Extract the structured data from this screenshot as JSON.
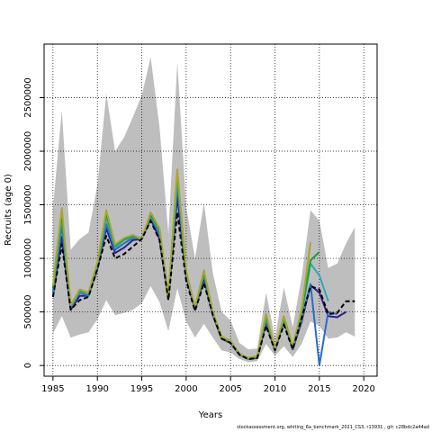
{
  "footer": "stockassessment.org, whiting_6a_benchmark_2021_CS3, r13931 , git: c28bdc2a44ad",
  "chart_data": {
    "type": "line",
    "title": "",
    "xlabel": "Years",
    "ylabel": "Recruits (age 0)",
    "xlim": [
      1984,
      2021.5
    ],
    "ylim": [
      -100000,
      3000000
    ],
    "xticks": [
      1985,
      1990,
      1995,
      2000,
      2005,
      2010,
      2015,
      2020
    ],
    "yticks": [
      0,
      500000,
      1000000,
      1500000,
      2000000,
      2500000
    ],
    "ytick_labels": [
      "0",
      "500000",
      "1000000",
      "1500000",
      "2000000",
      "2500000"
    ],
    "grid": true,
    "band": {
      "fill": "#bebebe",
      "x": [
        1985,
        1986,
        1987,
        1988,
        1989,
        1990,
        1991,
        1992,
        1993,
        1994,
        1995,
        1996,
        1997,
        1998,
        1999,
        2000,
        2001,
        2002,
        2003,
        2004,
        2005,
        2006,
        2007,
        2008,
        2009,
        2010,
        2011,
        2012,
        2013,
        2014,
        2015,
        2016,
        2017,
        2018,
        2019
      ],
      "upper": [
        1480000,
        2380000,
        1080000,
        1180000,
        1240000,
        1680000,
        2540000,
        2000000,
        2130000,
        2320000,
        2520000,
        2880000,
        2220000,
        1230000,
        2830000,
        1480000,
        1000000,
        1520000,
        860000,
        500000,
        420000,
        210000,
        150000,
        160000,
        680000,
        260000,
        730000,
        360000,
        820000,
        1450000,
        1350000,
        910000,
        950000,
        1140000,
        1290000
      ],
      "lower": [
        300000,
        460000,
        260000,
        290000,
        310000,
        430000,
        610000,
        470000,
        490000,
        520000,
        580000,
        740000,
        590000,
        320000,
        720000,
        410000,
        260000,
        390000,
        260000,
        140000,
        120000,
        60000,
        30000,
        40000,
        200000,
        90000,
        180000,
        80000,
        200000,
        410000,
        370000,
        250000,
        260000,
        310000,
        270000
      ]
    },
    "series": [
      {
        "color": "#2f1f8a",
        "dash": "",
        "x": [
          1985,
          1986,
          1987,
          1988,
          1989,
          1990,
          1991,
          1992,
          1993,
          1994,
          1995,
          1996,
          1997,
          1998,
          1999,
          2000,
          2001,
          2002,
          2003,
          2004,
          2005,
          2006,
          2007,
          2008,
          2009,
          2010,
          2011,
          2012,
          2013,
          2014,
          2015,
          2016,
          2017,
          2018
        ],
        "y": [
          650000,
          1200000,
          520000,
          650000,
          650000,
          900000,
          1280000,
          1050000,
          1100000,
          1170000,
          1180000,
          1370000,
          1180000,
          620000,
          1580000,
          830000,
          520000,
          810000,
          470000,
          250000,
          210000,
          100000,
          60000,
          70000,
          400000,
          140000,
          420000,
          150000,
          410000,
          750000,
          680000,
          460000,
          450000,
          500000
        ]
      },
      {
        "color": "#2a6dc8",
        "dash": "",
        "x": [
          1985,
          1986,
          1987,
          1988,
          1989,
          1990,
          1991,
          1992,
          1993,
          1994,
          1995,
          1996,
          1997,
          1998,
          1999,
          2000,
          2001,
          2002,
          2003,
          2004,
          2005,
          2006,
          2007,
          2008,
          2009,
          2010,
          2011,
          2012,
          2013,
          2014,
          2015,
          2016,
          2017
        ],
        "y": [
          680000,
          1300000,
          540000,
          680000,
          650000,
          920000,
          1320000,
          1080000,
          1140000,
          1190000,
          1190000,
          1390000,
          1220000,
          630000,
          1680000,
          850000,
          530000,
          840000,
          480000,
          260000,
          220000,
          100000,
          60000,
          80000,
          420000,
          150000,
          430000,
          160000,
          430000,
          760000,
          700,
          500000,
          480000
        ]
      },
      {
        "color": "#2fa8b8",
        "dash": "",
        "x": [
          1985,
          1986,
          1987,
          1988,
          1989,
          1990,
          1991,
          1992,
          1993,
          1994,
          1995,
          1996,
          1997,
          1998,
          1999,
          2000,
          2001,
          2002,
          2003,
          2004,
          2005,
          2006,
          2007,
          2008,
          2009,
          2010,
          2011,
          2012,
          2013,
          2014,
          2015,
          2016
        ],
        "y": [
          700000,
          1380000,
          550000,
          690000,
          670000,
          940000,
          1380000,
          1100000,
          1170000,
          1200000,
          1180000,
          1400000,
          1250000,
          640000,
          1750000,
          860000,
          540000,
          860000,
          490000,
          260000,
          220000,
          110000,
          60000,
          80000,
          450000,
          150000,
          440000,
          170000,
          470000,
          950000,
          840000,
          600000
        ]
      },
      {
        "color": "#1e9a3c",
        "dash": "",
        "x": [
          1985,
          1986,
          1987,
          1988,
          1989,
          1990,
          1991,
          1992,
          1993,
          1994,
          1995,
          1996,
          1997,
          1998,
          1999,
          2000,
          2001,
          2002,
          2003,
          2004,
          2005,
          2006,
          2007,
          2008,
          2009,
          2010,
          2011,
          2012,
          2013,
          2014,
          2015
        ],
        "y": [
          720000,
          1420000,
          560000,
          700000,
          680000,
          950000,
          1420000,
          1120000,
          1180000,
          1210000,
          1180000,
          1410000,
          1270000,
          650000,
          1800000,
          870000,
          540000,
          870000,
          490000,
          260000,
          220000,
          110000,
          60000,
          80000,
          460000,
          150000,
          450000,
          170000,
          500000,
          980000,
          1060000
        ]
      },
      {
        "color": "#a8a82a",
        "dash": "",
        "x": [
          1985,
          1986,
          1987,
          1988,
          1989,
          1990,
          1991,
          1992,
          1993,
          1994,
          1995,
          1996,
          1997,
          1998,
          1999,
          2000,
          2001,
          2002,
          2003,
          2004,
          2005,
          2006,
          2007,
          2008,
          2009,
          2010,
          2011,
          2012,
          2013,
          2014
        ],
        "y": [
          750000,
          1470000,
          560000,
          710000,
          680000,
          960000,
          1450000,
          1130000,
          1190000,
          1220000,
          1180000,
          1430000,
          1280000,
          650000,
          1830000,
          880000,
          540000,
          890000,
          500000,
          270000,
          230000,
          110000,
          70000,
          90000,
          480000,
          160000,
          460000,
          180000,
          520000,
          1150000
        ]
      },
      {
        "color": "#000000",
        "dash": "5,3",
        "x": [
          1985,
          1986,
          1987,
          1988,
          1989,
          1990,
          1991,
          1992,
          1993,
          1994,
          1995,
          1996,
          1997,
          1998,
          1999,
          2000,
          2001,
          2002,
          2003,
          2004,
          2005,
          2006,
          2007,
          2008,
          2009,
          2010,
          2011,
          2012,
          2013,
          2014,
          2015,
          2016,
          2017,
          2018,
          2019
        ],
        "y": [
          640000,
          1130000,
          520000,
          610000,
          640000,
          900000,
          1210000,
          1000000,
          1040000,
          1110000,
          1180000,
          1350000,
          1170000,
          610000,
          1430000,
          790000,
          510000,
          770000,
          470000,
          250000,
          210000,
          100000,
          60000,
          70000,
          370000,
          140000,
          380000,
          150000,
          440000,
          740000,
          710000,
          480000,
          490000,
          600000,
          600000
        ]
      }
    ]
  }
}
